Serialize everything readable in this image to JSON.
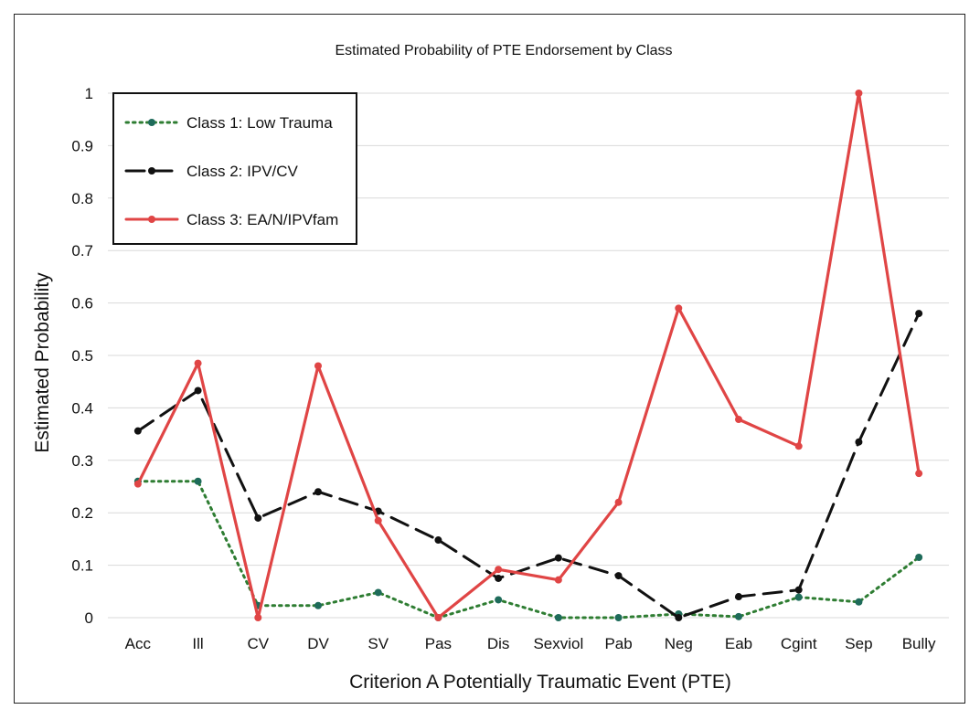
{
  "chart_data": {
    "type": "line",
    "title": "Estimated Probability of PTE Endorsement by Class",
    "xlabel": "Criterion A Potentially Traumatic Event (PTE)",
    "ylabel": "Estimated Probability",
    "ylim": [
      0,
      1
    ],
    "yticks": [
      "0",
      "0.1",
      "0.2",
      "0.3",
      "0.4",
      "0.5",
      "0.6",
      "0.7",
      "0.8",
      "0.9",
      "1"
    ],
    "grid": true,
    "legend_position": "top-left",
    "categories": [
      "Acc",
      "Ill",
      "CV",
      "DV",
      "SV",
      "Pas",
      "Dis",
      "Sexviol",
      "Pab",
      "Neg",
      "Eab",
      "Cgint",
      "Sep",
      "Bully"
    ],
    "series": [
      {
        "name": "Class 1: Low Trauma",
        "color": "#2e7d32",
        "marker_color": "#1e6b5a",
        "style": "dotted",
        "values": [
          0.26,
          0.26,
          0.023,
          0.023,
          0.048,
          0.0,
          0.034,
          0.0,
          0.0,
          0.007,
          0.002,
          0.039,
          0.03,
          0.115
        ]
      },
      {
        "name": "Class 2: IPV/CV",
        "color": "#111111",
        "marker_color": "#111111",
        "style": "dashed",
        "values": [
          0.356,
          0.433,
          0.19,
          0.24,
          0.203,
          0.148,
          0.075,
          0.114,
          0.08,
          0.0,
          0.04,
          0.053,
          0.335,
          0.58
        ]
      },
      {
        "name": "Class 3: EA/N/IPVfam",
        "color": "#e04545",
        "marker_color": "#e04545",
        "style": "solid",
        "values": [
          0.255,
          0.485,
          0.0,
          0.48,
          0.185,
          0.0,
          0.092,
          0.072,
          0.22,
          0.59,
          0.378,
          0.327,
          1.0,
          0.275
        ]
      }
    ]
  }
}
